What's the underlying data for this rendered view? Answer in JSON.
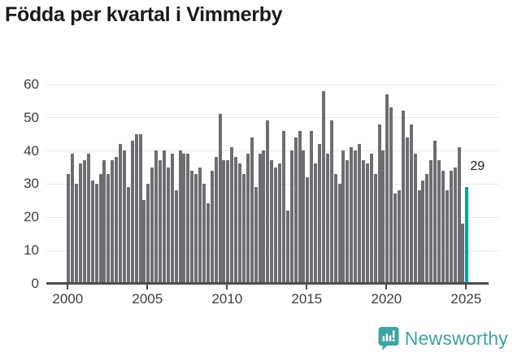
{
  "title": "Födda per kvartal i Vimmerby",
  "chart_data": {
    "type": "bar",
    "title": "Födda per kvartal i Vimmerby",
    "x_unit": "quarter",
    "x_start": "2000-Q1",
    "x_end": "2025-Q1",
    "start_year": 2000,
    "values": [
      33,
      39,
      30,
      36,
      37,
      39,
      31,
      30,
      33,
      37,
      33,
      37,
      38,
      42,
      40,
      29,
      43,
      45,
      45,
      25,
      30,
      35,
      40,
      37,
      40,
      35,
      39,
      28,
      40,
      39,
      39,
      34,
      33,
      35,
      30,
      24,
      34,
      38,
      51,
      37,
      37,
      41,
      38,
      36,
      33,
      39,
      44,
      29,
      39,
      40,
      49,
      37,
      35,
      36,
      46,
      22,
      40,
      44,
      46,
      40,
      32,
      46,
      36,
      42,
      58,
      39,
      49,
      33,
      30,
      40,
      37,
      41,
      40,
      42,
      37,
      36,
      39,
      33,
      48,
      40,
      57,
      53,
      27,
      28,
      52,
      44,
      48,
      39,
      28,
      31,
      33,
      37,
      43,
      37,
      34,
      28,
      34,
      35,
      41,
      18,
      29
    ],
    "ylim": [
      0,
      60
    ],
    "yticks": [
      0,
      10,
      20,
      30,
      40,
      50,
      60
    ],
    "xticks": [
      2000,
      2005,
      2010,
      2015,
      2020,
      2025
    ],
    "grid": "horizontal",
    "legend": "none",
    "highlight_last_bar": true,
    "annotation": {
      "text": "29"
    },
    "bar_color": "#6e6d72",
    "highlight_color": "#00a2a0",
    "axis_color": "#4d4d4d",
    "gridline_color": "#e7e7e7"
  },
  "footer": {
    "brand": "Newsworthy",
    "brand_color": "#3ca5a3"
  }
}
